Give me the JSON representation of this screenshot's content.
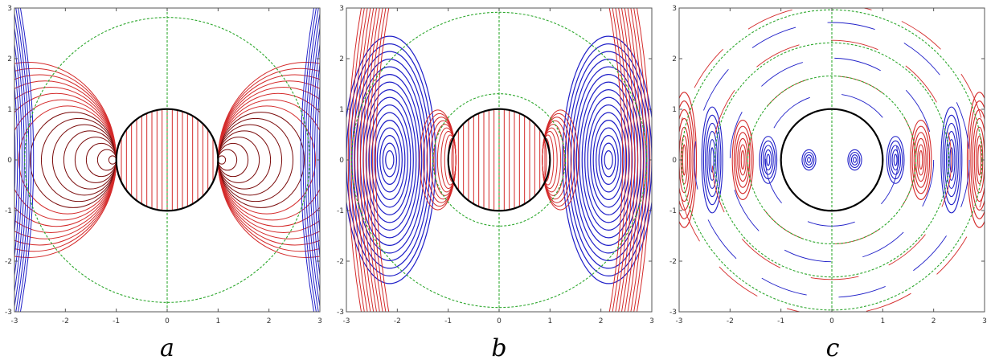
{
  "colors": {
    "red": "#d42a2a",
    "dark_red": "#7a0a0a",
    "blue": "#1f1fc8",
    "green": "#2ea82e",
    "black": "#000000"
  },
  "panels": [
    {
      "id": "a",
      "caption": "a",
      "x_ticks": [
        "-3",
        "-2",
        "-1",
        "0",
        "1",
        "2",
        "3"
      ],
      "y_ticks": [
        "3",
        "2",
        "1",
        "0",
        "-1",
        "-2",
        "-3"
      ],
      "x_range": [
        -3,
        3
      ],
      "y_range": [
        -3,
        3
      ],
      "unit_circle_radius": 1,
      "green_circle_radii": [
        2.8
      ],
      "content": "static dipole-like field: red/dark-red closed loops around the unit circle, vertical red lines inside, blue field lines near left and right edges"
    },
    {
      "id": "b",
      "caption": "b",
      "x_ticks": [
        "-3",
        "-2",
        "-1",
        "0",
        "1",
        "2",
        "3"
      ],
      "y_ticks": [
        "3",
        "2",
        "1",
        "0",
        "-1",
        "-2",
        "-3"
      ],
      "x_range": [
        -3,
        3
      ],
      "y_range": [
        -3,
        3
      ],
      "unit_circle_radius": 1,
      "green_circle_radii": [
        1.3,
        2.9
      ],
      "content": "red loops near the unit circle, blue vortex lobes centered near x=±2.1, red lines along outer edges"
    },
    {
      "id": "c",
      "caption": "c",
      "x_ticks": [
        "-3",
        "-2",
        "-1",
        "0",
        "1",
        "2",
        "3"
      ],
      "y_ticks": [
        "3",
        "2",
        "1",
        "0",
        "-1",
        "-2",
        "-3"
      ],
      "x_range": [
        -3,
        3
      ],
      "y_range": [
        -3,
        3
      ],
      "unit_circle_radius": 1,
      "green_circle_radii": [
        1.0,
        1.65,
        2.3,
        2.95
      ],
      "content": "alternating blue and red lobe bands along x-axis, small blue vortices inside unit circle at x=±0.45"
    }
  ]
}
